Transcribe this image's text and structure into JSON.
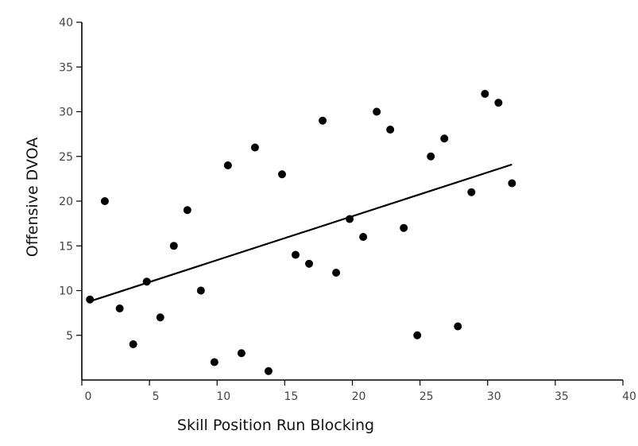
{
  "chart_data": {
    "type": "scatter",
    "title": "",
    "xlabel": "Skill Position Run Blocking",
    "ylabel": "Offensive DVOA",
    "xlim": [
      0,
      40
    ],
    "ylim": [
      0,
      40
    ],
    "xticks": [
      0,
      5,
      10,
      15,
      20,
      25,
      30,
      35,
      40
    ],
    "yticks": [
      5,
      10,
      15,
      20,
      25,
      30,
      35,
      40
    ],
    "grid": false,
    "point_color": "#000000",
    "points": [
      {
        "x": 0.6,
        "y": 9
      },
      {
        "x": 1.7,
        "y": 20
      },
      {
        "x": 2.8,
        "y": 8
      },
      {
        "x": 3.8,
        "y": 4
      },
      {
        "x": 4.8,
        "y": 11
      },
      {
        "x": 5.8,
        "y": 7
      },
      {
        "x": 6.8,
        "y": 15
      },
      {
        "x": 7.8,
        "y": 19
      },
      {
        "x": 8.8,
        "y": 10
      },
      {
        "x": 9.8,
        "y": 2
      },
      {
        "x": 10.8,
        "y": 24
      },
      {
        "x": 11.8,
        "y": 3
      },
      {
        "x": 12.8,
        "y": 26
      },
      {
        "x": 13.8,
        "y": 1
      },
      {
        "x": 14.8,
        "y": 23
      },
      {
        "x": 15.8,
        "y": 14
      },
      {
        "x": 16.8,
        "y": 13
      },
      {
        "x": 17.8,
        "y": 29
      },
      {
        "x": 18.8,
        "y": 12
      },
      {
        "x": 19.8,
        "y": 18
      },
      {
        "x": 20.8,
        "y": 16
      },
      {
        "x": 21.8,
        "y": 30
      },
      {
        "x": 22.8,
        "y": 28
      },
      {
        "x": 23.8,
        "y": 17
      },
      {
        "x": 24.8,
        "y": 5
      },
      {
        "x": 25.8,
        "y": 25
      },
      {
        "x": 26.8,
        "y": 27
      },
      {
        "x": 27.8,
        "y": 6
      },
      {
        "x": 28.8,
        "y": 21
      },
      {
        "x": 29.8,
        "y": 32
      },
      {
        "x": 30.8,
        "y": 31
      },
      {
        "x": 31.8,
        "y": 22
      }
    ],
    "trendline": {
      "x1": 0.6,
      "y1": 8.8,
      "x2": 31.8,
      "y2": 24.1
    }
  }
}
